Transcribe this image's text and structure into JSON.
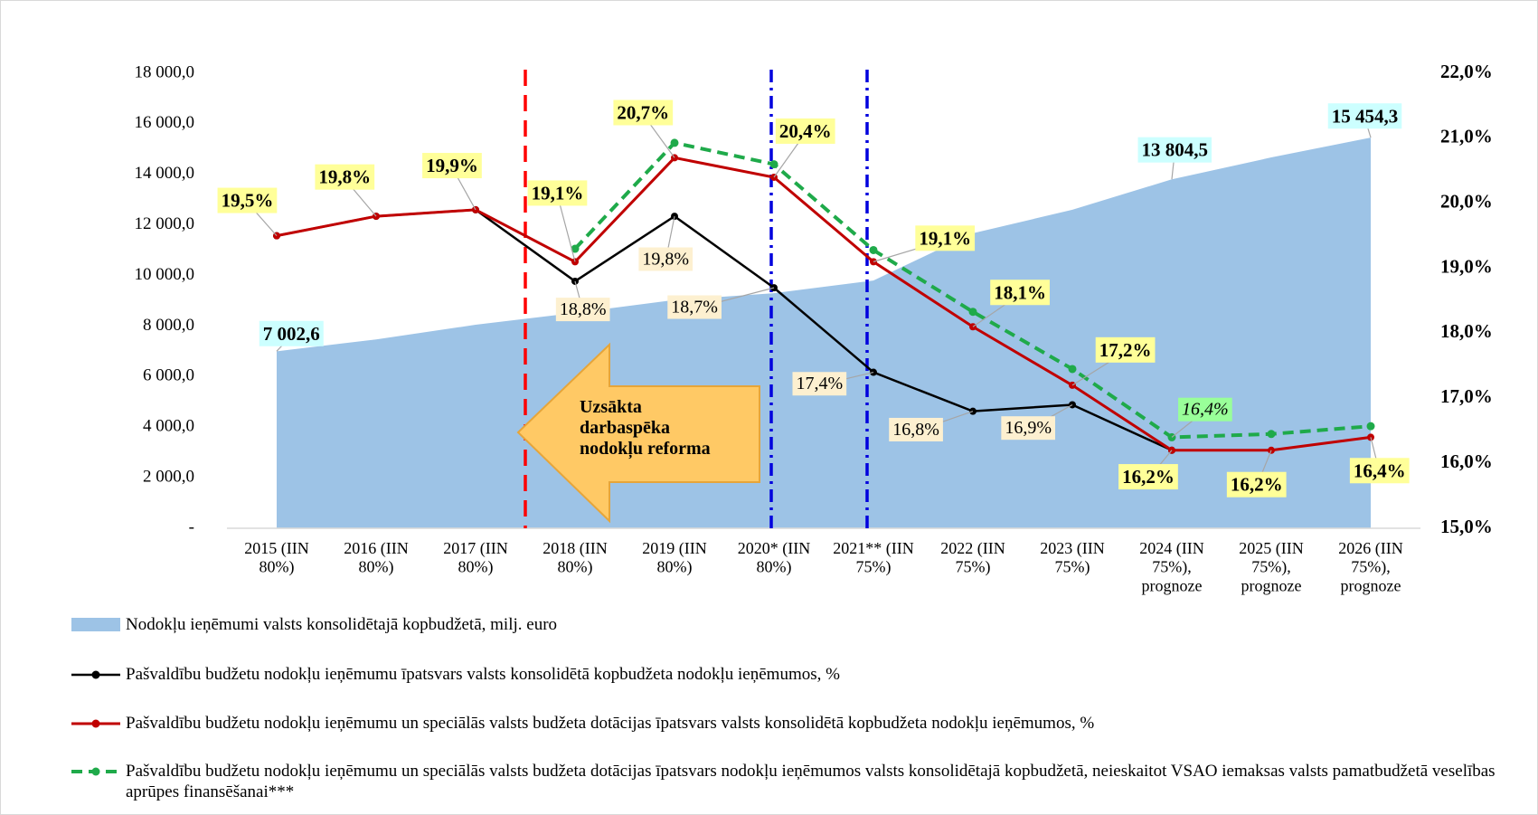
{
  "chart_data": {
    "type": "area-line",
    "categories": [
      "2015 (IIN\n80%)",
      "2016 (IIN\n80%)",
      "2017 (IIN\n80%)",
      "2018 (IIN\n80%)",
      "2019 (IIN\n80%)",
      "2020* (IIN\n80%)",
      "2021** (IIN\n75%)",
      "2022 (IIN\n75%)",
      "2023 (IIN\n75%)",
      "2024 (IIN\n75%),\nprognoze",
      "2025 (IIN\n75%),\nprognoze",
      "2026 (IIN\n75%),\nprognoze"
    ],
    "series": [
      {
        "name": "Nodokļu ieņēmumi valsts konsolidētajā kopbudžetā, milj. euro",
        "color": "#9dc3e6",
        "axis": "y",
        "values": [
          7002.6,
          7470,
          8050,
          8520,
          9030,
          9300,
          9800,
          11670,
          12600,
          13804.5,
          14670,
          15454.3
        ],
        "value_labels": [
          "7 002,6",
          null,
          null,
          null,
          null,
          null,
          null,
          null,
          null,
          "13 804,5",
          null,
          "15 454,3"
        ]
      },
      {
        "name": "Pašvaldību budžetu nodokļu ieņēmumu īpatsvars valsts konsolidētā kopbudžeta nodokļu ieņēmumos, %",
        "color": "#000000",
        "axis": "y2",
        "values": [
          19.5,
          19.8,
          19.9,
          18.8,
          19.8,
          18.7,
          17.4,
          16.8,
          16.9,
          16.2,
          null,
          null
        ],
        "value_labels": [
          null,
          null,
          null,
          "18,8%",
          "19,8%",
          "18,7%",
          "17,4%",
          "16,8%",
          "16,9%",
          null,
          null,
          null
        ]
      },
      {
        "name": "Pašvaldību budžetu nodokļu ieņēmumu un speciālās valsts budžeta dotācijas īpatsvars valsts konsolidētā kopbudžeta nodokļu ieņēmumos, %",
        "color": "#c00000",
        "axis": "y2",
        "values": [
          19.5,
          19.8,
          19.9,
          19.1,
          20.7,
          20.4,
          19.1,
          18.1,
          17.2,
          16.2,
          16.2,
          16.4
        ],
        "value_labels": [
          "19,5%",
          "19,8%",
          "19,9%",
          "19,1%",
          "20,7%",
          "20,4%",
          "19,1%",
          "18,1%",
          "17,2%",
          "16,2%",
          "16,2%",
          "16,4%"
        ]
      },
      {
        "name": "Pašvaldību budžetu nodokļu ieņēmumu un speciālās valsts budžeta dotācijas īpatsvars nodokļu ieņēmumos valsts konsolidētajā kopbudžetā, neieskaitot VSAO iemaksas valsts pamatbudžetā veselības aprūpes finansēšanai***",
        "color": "#1faa4a",
        "axis": "y2",
        "values": [
          null,
          null,
          null,
          19.3,
          20.93,
          20.6,
          19.28,
          18.33,
          17.45,
          16.4,
          16.45,
          16.57
        ],
        "value_labels": [
          null,
          null,
          null,
          null,
          null,
          null,
          null,
          null,
          null,
          "16,4%",
          null,
          null
        ]
      }
    ],
    "ylim": [
      0,
      18000
    ],
    "yticks": [
      {
        "value": 0,
        "label": "-"
      },
      {
        "value": 2000,
        "label": "2 000,0"
      },
      {
        "value": 4000,
        "label": "4 000,0"
      },
      {
        "value": 6000,
        "label": "6 000,0"
      },
      {
        "value": 8000,
        "label": "8 000,0"
      },
      {
        "value": 10000,
        "label": "10 000,0"
      },
      {
        "value": 12000,
        "label": "12 000,0"
      },
      {
        "value": 14000,
        "label": "14 000,0"
      },
      {
        "value": 16000,
        "label": "16 000,0"
      },
      {
        "value": 18000,
        "label": "18 000,0"
      }
    ],
    "y2lim": [
      15,
      22
    ],
    "y2ticks": [
      {
        "value": 15,
        "label": "15,0%"
      },
      {
        "value": 16,
        "label": "16,0%"
      },
      {
        "value": 17,
        "label": "17,0%"
      },
      {
        "value": 18,
        "label": "18,0%"
      },
      {
        "value": 19,
        "label": "19,0%"
      },
      {
        "value": 20,
        "label": "20,0%"
      },
      {
        "value": 21,
        "label": "21,0%"
      },
      {
        "value": 22,
        "label": "22,0%"
      }
    ],
    "annotation": "Uzsākta\ndarbaspēka\nnodokļu reforma",
    "legend": "bottom"
  }
}
